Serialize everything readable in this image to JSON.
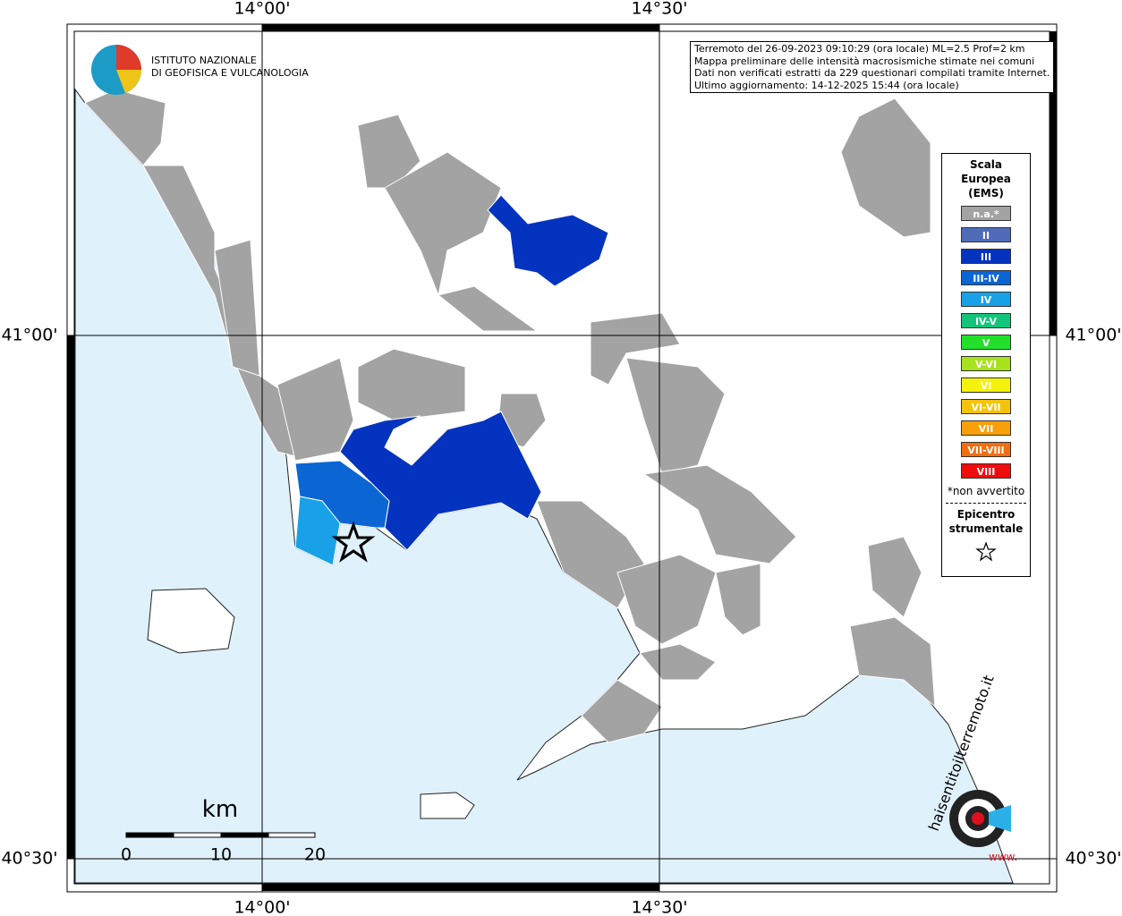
{
  "logo": {
    "lines": [
      "ISTITUTO NAZIONALE",
      "DI GEOFISICA E VULCANOLOGIA"
    ]
  },
  "info_box": {
    "lines": [
      "Terremoto del 26-09-2023 09:10:29 (ora locale) ML=2.5 Prof=2 km",
      "Mappa preliminare delle intensità macrosismiche stimate nei comuni",
      "Dati non verificati estratti da 229 questionari compilati tramite Internet.",
      "Ultimo aggiornamento: 14-12-2025 15:44 (ora locale)"
    ]
  },
  "graticule": {
    "longitudes": [
      "14°00'",
      "14°30'"
    ],
    "latitudes": [
      "41°00'",
      "40°30'"
    ]
  },
  "legend": {
    "title": [
      "Scala",
      "Europea",
      "(EMS)"
    ],
    "entries": [
      {
        "label": "n.a.*",
        "color": "#a3a3a3"
      },
      {
        "label": "II",
        "color": "#4f6cb8"
      },
      {
        "label": "III",
        "color": "#0433bf"
      },
      {
        "label": "III-IV",
        "color": "#0b66d4"
      },
      {
        "label": "IV",
        "color": "#18a1e6"
      },
      {
        "label": "IV-V",
        "color": "#14c47a"
      },
      {
        "label": "V",
        "color": "#22e02a"
      },
      {
        "label": "V-VI",
        "color": "#a7e31d"
      },
      {
        "label": "VI",
        "color": "#f4f20b"
      },
      {
        "label": "VI-VII",
        "color": "#f4c40c"
      },
      {
        "label": "VII",
        "color": "#f7a00b"
      },
      {
        "label": "VII-VIII",
        "color": "#f26e0c"
      },
      {
        "label": "VIII",
        "color": "#ef0c0c"
      }
    ],
    "note": "*non avvertito",
    "epicenter": [
      "Epicentro",
      "strumentale"
    ]
  },
  "scale_bar": {
    "unit": "km",
    "labels": [
      "0",
      "10",
      "20"
    ]
  },
  "site_logo": {
    "name": "haisentitoilterremoto.it",
    "prefix": "www."
  }
}
